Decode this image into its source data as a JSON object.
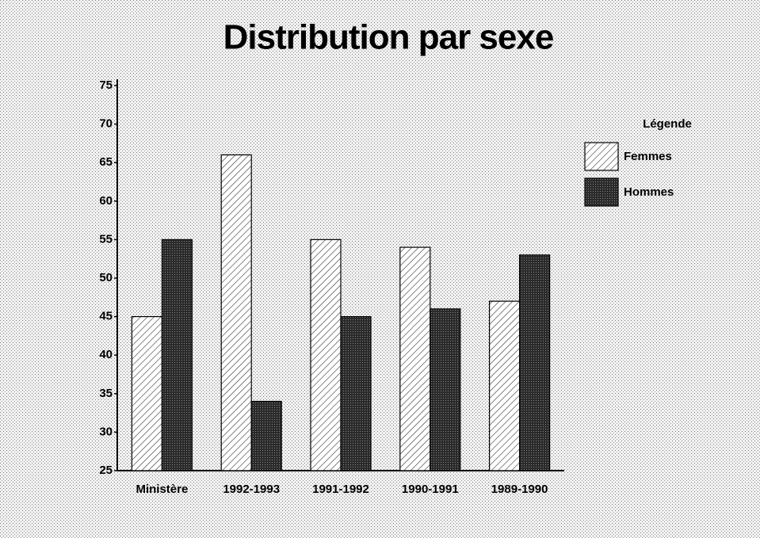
{
  "chart_data": {
    "type": "bar",
    "title": "Distribution par sexe",
    "categories": [
      "Ministère",
      "1992-1993",
      "1991-1992",
      "1990-1991",
      "1989-1990"
    ],
    "series": [
      {
        "name": "Femmes",
        "color": "#ffffff",
        "pattern": "hatch",
        "values": [
          45,
          66,
          55,
          54,
          47
        ]
      },
      {
        "name": "Hommes",
        "color": "#3a3a3a",
        "pattern": "solid",
        "values": [
          55,
          34,
          45,
          46,
          53
        ]
      }
    ],
    "legend_title": "Légende",
    "legend": "right",
    "ylim": [
      25,
      75
    ],
    "yticks": [
      25,
      30,
      35,
      40,
      45,
      50,
      55,
      60,
      65,
      70,
      75
    ]
  }
}
